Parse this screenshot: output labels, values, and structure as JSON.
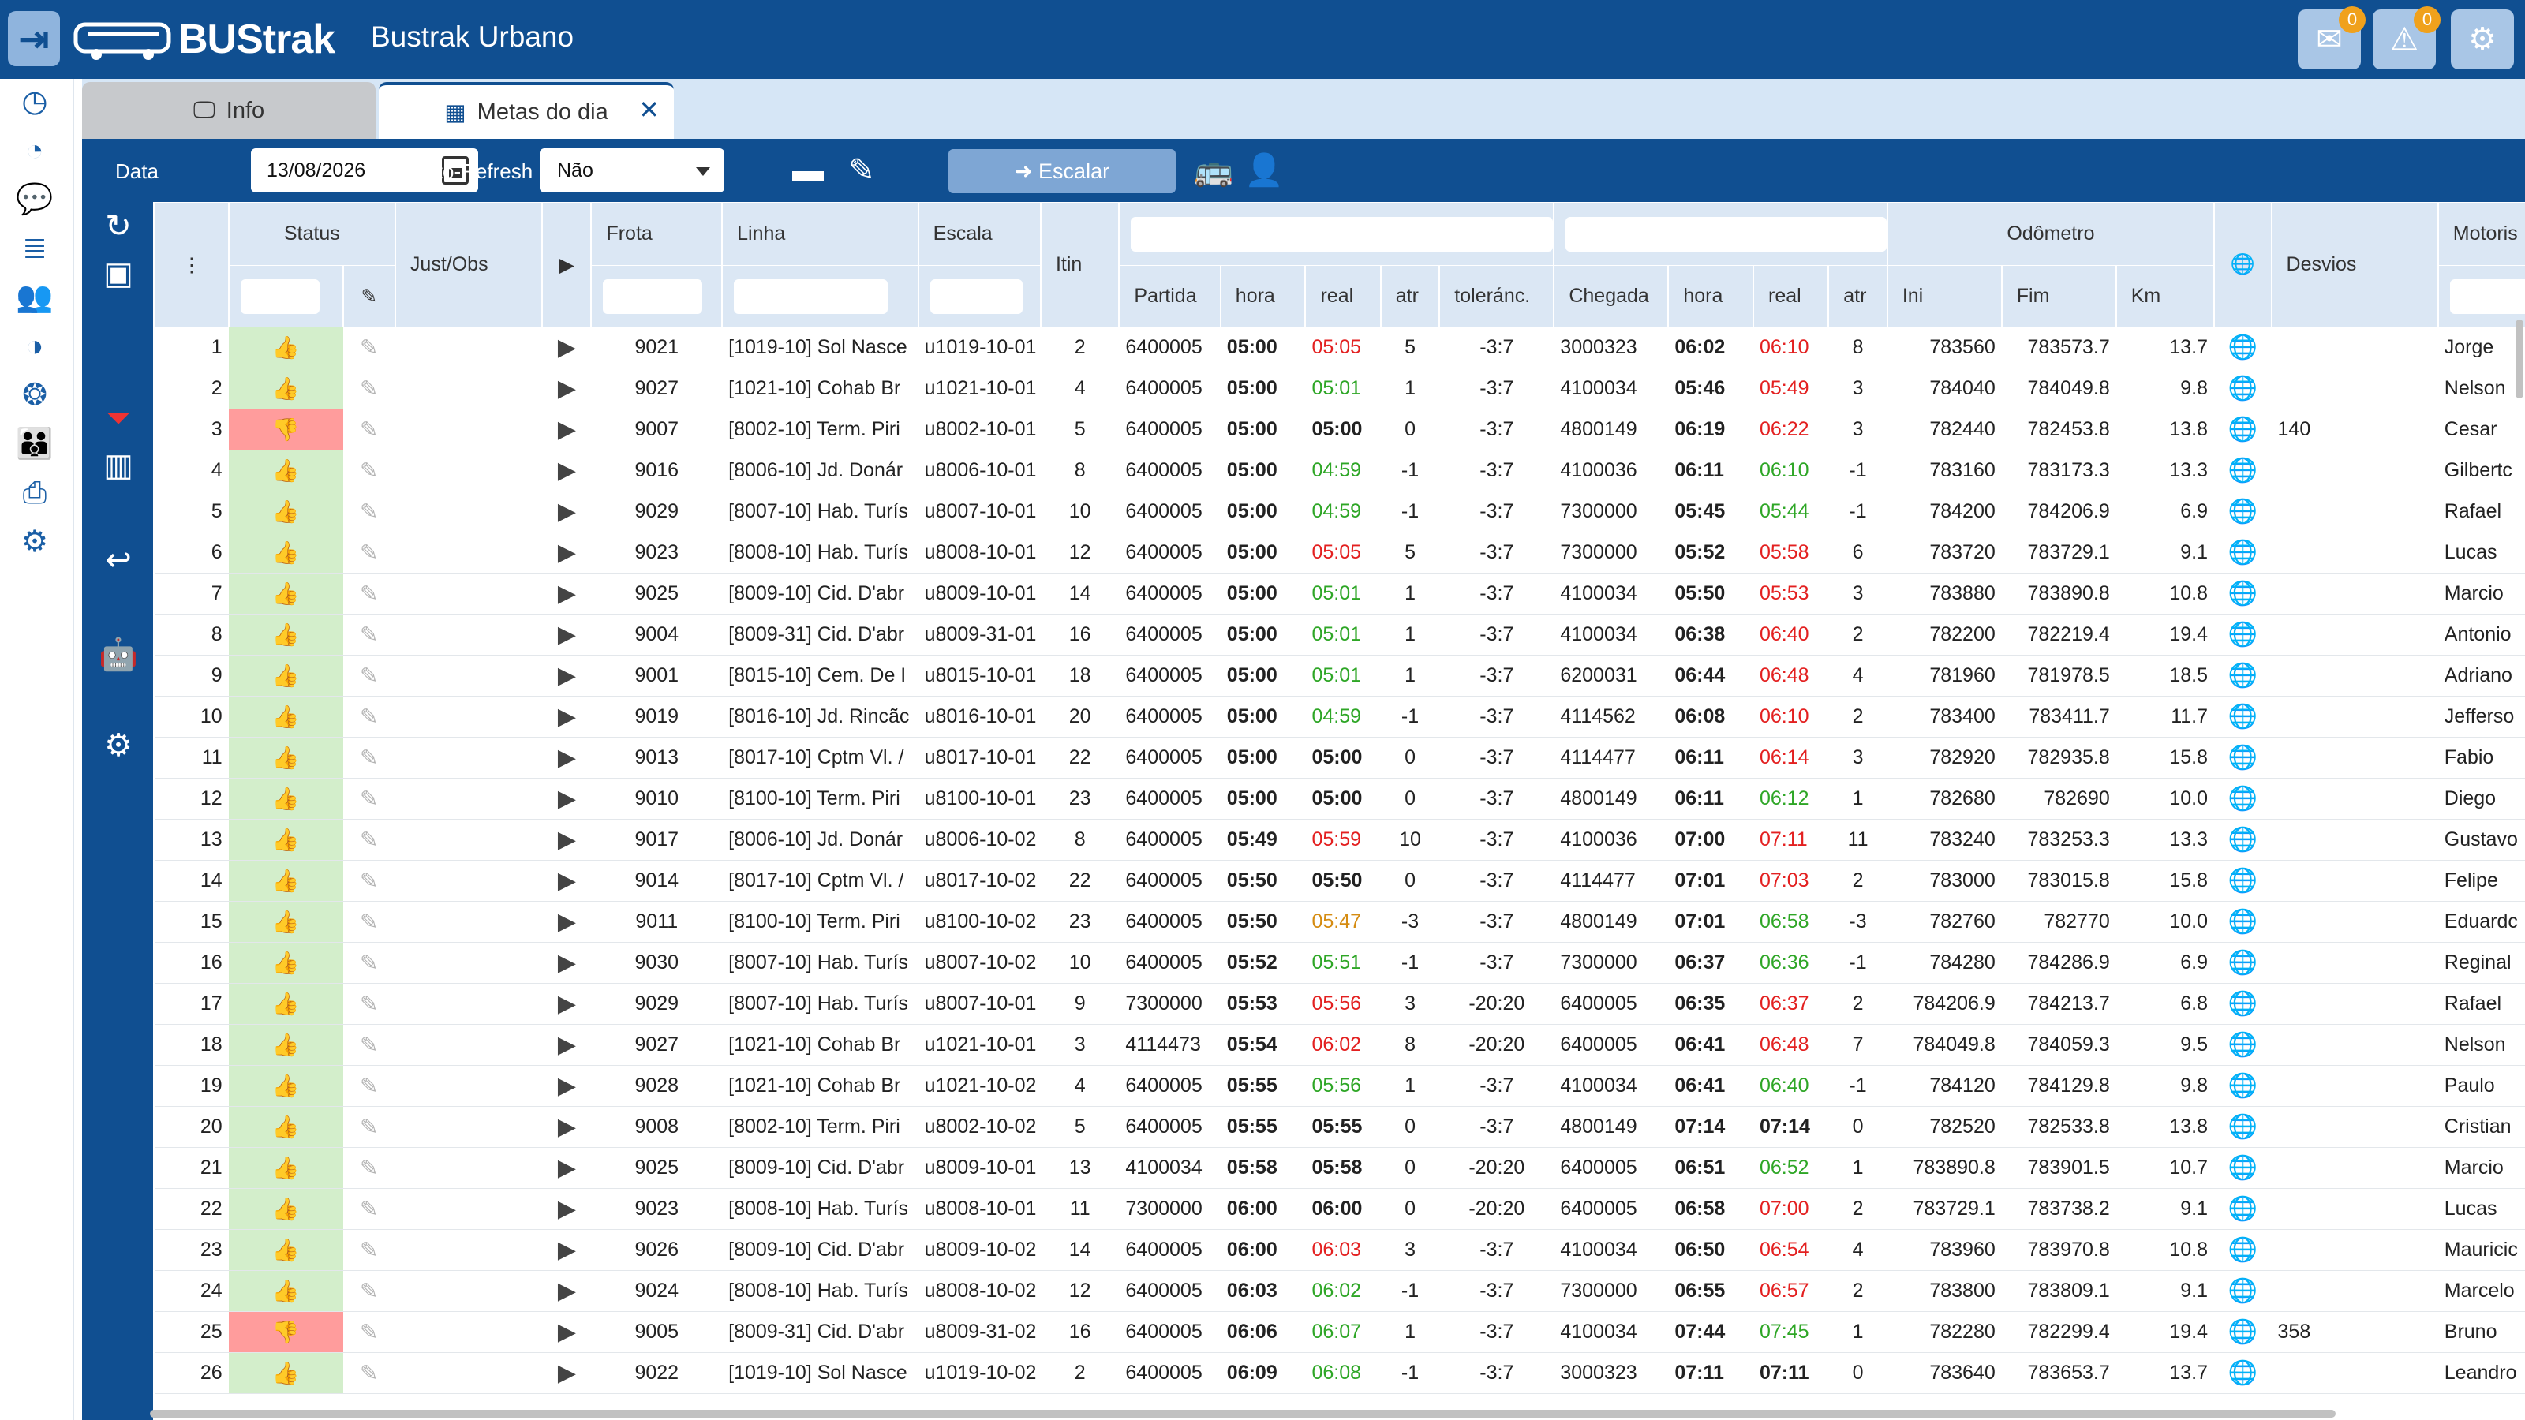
{
  "header": {
    "title": "Bustrak Urbano",
    "logo_text": "BUStrak",
    "messages_badge": "0",
    "alerts_badge": "0"
  },
  "tabs": [
    {
      "label": "Info"
    },
    {
      "label": "Metas do dia"
    }
  ],
  "toolbar": {
    "data_label": "Data",
    "date_value": "13/08/2026",
    "auto_refresh_label": "Auto-Refresh",
    "auto_refresh_value": "Não",
    "escalar_label": "Escalar"
  },
  "table": {
    "headers": {
      "status": "Status",
      "just_obs": "Just/Obs",
      "frota": "Frota",
      "linha": "Linha",
      "escala": "Escala",
      "itin": "Itin",
      "partida": "Partida",
      "hora": "hora",
      "real": "real",
      "atr": "atr",
      "tolerancia": "toleránc.",
      "chegada": "Chegada",
      "odometro": "Odômetro",
      "ini": "Ini",
      "fim": "Fim",
      "km": "Km",
      "desvios": "Desvios",
      "motorista": "Motoris"
    },
    "rows": [
      [
        "1",
        "ok",
        "9021",
        "[1019-10] Sol Nasce",
        "u1019-10-01",
        "2",
        "6400005",
        "05:00",
        "05:05",
        "late",
        "5",
        "-3:7",
        "3000323",
        "06:02",
        "06:10",
        "late",
        "8",
        "783560",
        "783573.7",
        "13.7",
        "",
        "Jorge"
      ],
      [
        "2",
        "ok",
        "9027",
        "[1021-10] Cohab Br",
        "u1021-10-01",
        "4",
        "6400005",
        "05:00",
        "05:01",
        "early",
        "1",
        "-3:7",
        "4100034",
        "05:46",
        "05:49",
        "late",
        "3",
        "784040",
        "784049.8",
        "9.8",
        "",
        "Nelson"
      ],
      [
        "3",
        "bad",
        "9007",
        "[8002-10] Term. Piri",
        "u8002-10-01",
        "5",
        "6400005",
        "05:00",
        "05:00",
        "bold",
        "0",
        "-3:7",
        "4800149",
        "06:19",
        "06:22",
        "late",
        "3",
        "782440",
        "782453.8",
        "13.8",
        "140",
        "Cesar"
      ],
      [
        "4",
        "ok",
        "9016",
        "[8006-10] Jd. Donár",
        "u8006-10-01",
        "8",
        "6400005",
        "05:00",
        "04:59",
        "early",
        "-1",
        "-3:7",
        "4100036",
        "06:11",
        "06:10",
        "early",
        "-1",
        "783160",
        "783173.3",
        "13.3",
        "",
        "Gilbertc"
      ],
      [
        "5",
        "ok",
        "9029",
        "[8007-10] Hab. Turís",
        "u8007-10-01",
        "10",
        "6400005",
        "05:00",
        "04:59",
        "early",
        "-1",
        "-3:7",
        "7300000",
        "05:45",
        "05:44",
        "early",
        "-1",
        "784200",
        "784206.9",
        "6.9",
        "",
        "Rafael"
      ],
      [
        "6",
        "ok",
        "9023",
        "[8008-10] Hab. Turís",
        "u8008-10-01",
        "12",
        "6400005",
        "05:00",
        "05:05",
        "late",
        "5",
        "-3:7",
        "7300000",
        "05:52",
        "05:58",
        "late",
        "6",
        "783720",
        "783729.1",
        "9.1",
        "",
        "Lucas"
      ],
      [
        "7",
        "ok",
        "9025",
        "[8009-10] Cid. D'abr",
        "u8009-10-01",
        "14",
        "6400005",
        "05:00",
        "05:01",
        "early",
        "1",
        "-3:7",
        "4100034",
        "05:50",
        "05:53",
        "late",
        "3",
        "783880",
        "783890.8",
        "10.8",
        "",
        "Marcio"
      ],
      [
        "8",
        "ok",
        "9004",
        "[8009-31] Cid. D'abr",
        "u8009-31-01",
        "16",
        "6400005",
        "05:00",
        "05:01",
        "early",
        "1",
        "-3:7",
        "4100034",
        "06:38",
        "06:40",
        "late",
        "2",
        "782200",
        "782219.4",
        "19.4",
        "",
        "Antonio"
      ],
      [
        "9",
        "ok",
        "9001",
        "[8015-10] Cem. De I",
        "u8015-10-01",
        "18",
        "6400005",
        "05:00",
        "05:01",
        "early",
        "1",
        "-3:7",
        "6200031",
        "06:44",
        "06:48",
        "late",
        "4",
        "781960",
        "781978.5",
        "18.5",
        "",
        "Adriano"
      ],
      [
        "10",
        "ok",
        "9019",
        "[8016-10] Jd. Rincãc",
        "u8016-10-01",
        "20",
        "6400005",
        "05:00",
        "04:59",
        "early",
        "-1",
        "-3:7",
        "4114562",
        "06:08",
        "06:10",
        "late",
        "2",
        "783400",
        "783411.7",
        "11.7",
        "",
        "Jefferso"
      ],
      [
        "11",
        "ok",
        "9013",
        "[8017-10] Cptm Vl. /",
        "u8017-10-01",
        "22",
        "6400005",
        "05:00",
        "05:00",
        "bold",
        "0",
        "-3:7",
        "4114477",
        "06:11",
        "06:14",
        "late",
        "3",
        "782920",
        "782935.8",
        "15.8",
        "",
        "Fabio"
      ],
      [
        "12",
        "ok",
        "9010",
        "[8100-10] Term. Piri",
        "u8100-10-01",
        "23",
        "6400005",
        "05:00",
        "05:00",
        "bold",
        "0",
        "-3:7",
        "4800149",
        "06:11",
        "06:12",
        "early",
        "1",
        "782680",
        "782690",
        "10.0",
        "",
        "Diego"
      ],
      [
        "13",
        "ok",
        "9017",
        "[8006-10] Jd. Donár",
        "u8006-10-02",
        "8",
        "6400005",
        "05:49",
        "05:59",
        "late",
        "10",
        "-3:7",
        "4100036",
        "07:00",
        "07:11",
        "late",
        "11",
        "783240",
        "783253.3",
        "13.3",
        "",
        "Gustavo"
      ],
      [
        "14",
        "ok",
        "9014",
        "[8017-10] Cptm Vl. /",
        "u8017-10-02",
        "22",
        "6400005",
        "05:50",
        "05:50",
        "bold",
        "0",
        "-3:7",
        "4114477",
        "07:01",
        "07:03",
        "late",
        "2",
        "783000",
        "783015.8",
        "15.8",
        "",
        "Felipe"
      ],
      [
        "15",
        "ok",
        "9011",
        "[8100-10] Term. Piri",
        "u8100-10-02",
        "23",
        "6400005",
        "05:50",
        "05:47",
        "warn",
        "-3",
        "-3:7",
        "4800149",
        "07:01",
        "06:58",
        "early",
        "-3",
        "782760",
        "782770",
        "10.0",
        "",
        "Eduardc"
      ],
      [
        "16",
        "ok",
        "9030",
        "[8007-10] Hab. Turís",
        "u8007-10-02",
        "10",
        "6400005",
        "05:52",
        "05:51",
        "early",
        "-1",
        "-3:7",
        "7300000",
        "06:37",
        "06:36",
        "early",
        "-1",
        "784280",
        "784286.9",
        "6.9",
        "",
        "Reginal"
      ],
      [
        "17",
        "ok",
        "9029",
        "[8007-10] Hab. Turís",
        "u8007-10-01",
        "9",
        "7300000",
        "05:53",
        "05:56",
        "late",
        "3",
        "-20:20",
        "6400005",
        "06:35",
        "06:37",
        "late",
        "2",
        "784206.9",
        "784213.7",
        "6.8",
        "",
        "Rafael"
      ],
      [
        "18",
        "ok",
        "9027",
        "[1021-10] Cohab Br",
        "u1021-10-01",
        "3",
        "4114473",
        "05:54",
        "06:02",
        "late",
        "8",
        "-20:20",
        "6400005",
        "06:41",
        "06:48",
        "late",
        "7",
        "784049.8",
        "784059.3",
        "9.5",
        "",
        "Nelson"
      ],
      [
        "19",
        "ok",
        "9028",
        "[1021-10] Cohab Br",
        "u1021-10-02",
        "4",
        "6400005",
        "05:55",
        "05:56",
        "early",
        "1",
        "-3:7",
        "4100034",
        "06:41",
        "06:40",
        "early",
        "-1",
        "784120",
        "784129.8",
        "9.8",
        "",
        "Paulo"
      ],
      [
        "20",
        "ok",
        "9008",
        "[8002-10] Term. Piri",
        "u8002-10-02",
        "5",
        "6400005",
        "05:55",
        "05:55",
        "bold",
        "0",
        "-3:7",
        "4800149",
        "07:14",
        "07:14",
        "bold",
        "0",
        "782520",
        "782533.8",
        "13.8",
        "",
        "Cristian"
      ],
      [
        "21",
        "ok",
        "9025",
        "[8009-10] Cid. D'abr",
        "u8009-10-01",
        "13",
        "4100034",
        "05:58",
        "05:58",
        "bold",
        "0",
        "-20:20",
        "6400005",
        "06:51",
        "06:52",
        "early",
        "1",
        "783890.8",
        "783901.5",
        "10.7",
        "",
        "Marcio"
      ],
      [
        "22",
        "ok",
        "9023",
        "[8008-10] Hab. Turís",
        "u8008-10-01",
        "11",
        "7300000",
        "06:00",
        "06:00",
        "bold",
        "0",
        "-20:20",
        "6400005",
        "06:58",
        "07:00",
        "late",
        "2",
        "783729.1",
        "783738.2",
        "9.1",
        "",
        "Lucas"
      ],
      [
        "23",
        "ok",
        "9026",
        "[8009-10] Cid. D'abr",
        "u8009-10-02",
        "14",
        "6400005",
        "06:00",
        "06:03",
        "late",
        "3",
        "-3:7",
        "4100034",
        "06:50",
        "06:54",
        "late",
        "4",
        "783960",
        "783970.8",
        "10.8",
        "",
        "Mauricic"
      ],
      [
        "24",
        "ok",
        "9024",
        "[8008-10] Hab. Turís",
        "u8008-10-02",
        "12",
        "6400005",
        "06:03",
        "06:02",
        "early",
        "-1",
        "-3:7",
        "7300000",
        "06:55",
        "06:57",
        "late",
        "2",
        "783800",
        "783809.1",
        "9.1",
        "",
        "Marcelo"
      ],
      [
        "25",
        "bad",
        "9005",
        "[8009-31] Cid. D'abr",
        "u8009-31-02",
        "16",
        "6400005",
        "06:06",
        "06:07",
        "early",
        "1",
        "-3:7",
        "4100034",
        "07:44",
        "07:45",
        "early",
        "1",
        "782280",
        "782299.4",
        "19.4",
        "358",
        "Bruno"
      ],
      [
        "26",
        "ok",
        "9022",
        "[1019-10] Sol Nasce",
        "u1019-10-02",
        "2",
        "6400005",
        "06:09",
        "06:08",
        "early",
        "-1",
        "-3:7",
        "3000323",
        "07:11",
        "07:11",
        "bold",
        "0",
        "783640",
        "783653.7",
        "13.7",
        "",
        "Leandro"
      ]
    ]
  }
}
